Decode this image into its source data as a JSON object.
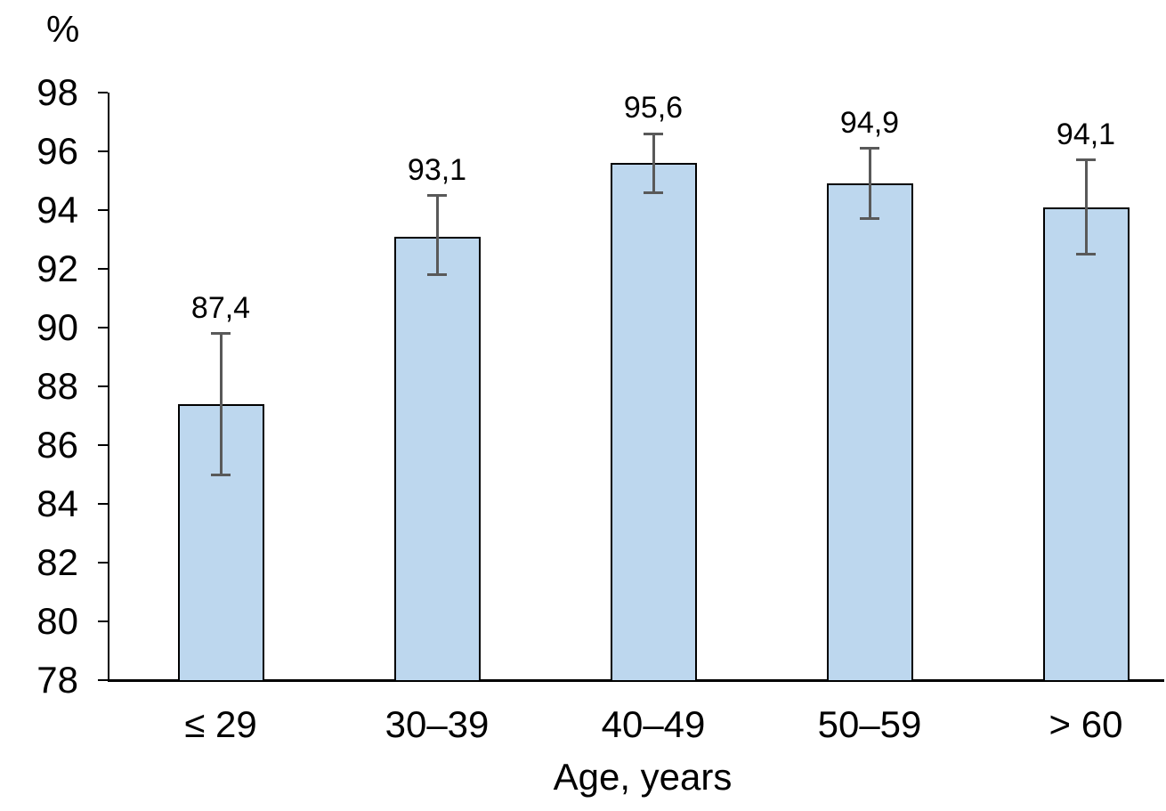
{
  "chart_data": {
    "type": "bar",
    "title": "",
    "ylabel": "%",
    "xlabel": "Age, years",
    "categories": [
      "≤ 29",
      "30–39",
      "40–49",
      "50–59",
      "> 60"
    ],
    "values": [
      87.4,
      93.1,
      95.6,
      94.9,
      94.1
    ],
    "data_labels": [
      "87,4",
      "93,1",
      "95,6",
      "94,9",
      "94,1"
    ],
    "error_high": [
      89.8,
      94.5,
      96.6,
      96.1,
      95.7
    ],
    "error_low": [
      85.0,
      91.8,
      94.6,
      93.7,
      92.5
    ],
    "ylim": [
      78,
      98
    ],
    "yticks": [
      78,
      80,
      82,
      84,
      86,
      88,
      90,
      92,
      94,
      96,
      98
    ],
    "grid": false,
    "legend": null,
    "decimal_separator": ",",
    "colors": {
      "bar_fill": "#BDD7EE",
      "bar_border": "#000000",
      "error_bar": "#595959",
      "axis": "#000000",
      "text": "#000000"
    }
  }
}
